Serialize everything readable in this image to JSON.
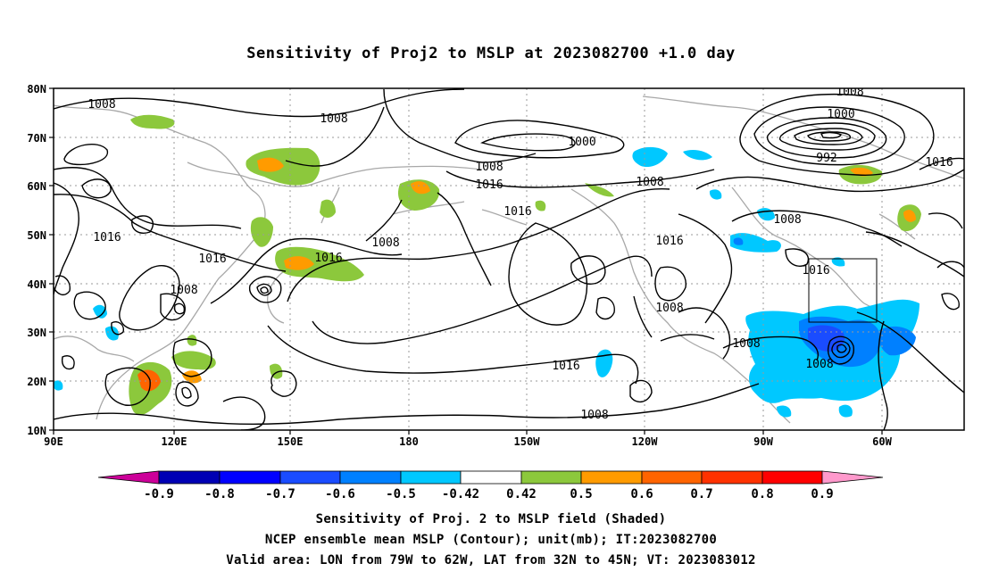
{
  "title": "Sensitivity of Proj2 to MSLP at 2023082700 +1.0 day",
  "lat_labels": [
    "80N",
    "70N",
    "60N",
    "50N",
    "40N",
    "30N",
    "20N",
    "10N"
  ],
  "lon_labels": [
    "90E",
    "120E",
    "150E",
    "180",
    "150W",
    "120W",
    "90W",
    "60W"
  ],
  "contour_labels": [
    "1008",
    "1008",
    "1016",
    "1016",
    "1008",
    "1016",
    "1008",
    "1016",
    "1000",
    "1008",
    "1016",
    "1016",
    "1008",
    "1016",
    "1008",
    "1008",
    "1008",
    "1000",
    "992",
    "1008",
    "1016",
    "1008",
    "1016",
    "1008",
    "1008"
  ],
  "colorbar": {
    "labels": [
      "-0.9",
      "-0.8",
      "-0.7",
      "-0.6",
      "-0.5",
      "-0.42",
      "0.42",
      "0.5",
      "0.6",
      "0.7",
      "0.8",
      "0.9"
    ],
    "colors": [
      "#cc0099",
      "#0000b4",
      "#0000ff",
      "#1a4cff",
      "#0080ff",
      "#00c8ff",
      "#ffffff",
      "#8cc83c",
      "#ff9b00",
      "#ff6400",
      "#ff3200",
      "#ff0000",
      "#ff99cc"
    ]
  },
  "captions": [
    "Sensitivity of Proj. 2 to MSLP field (Shaded)",
    "NCEP ensemble mean MSLP (Contour); unit(mb); IT:2023082700",
    "Valid area: LON from 79W to 62W, LAT from 32N to 45N; VT: 2023083012"
  ],
  "valid_area": {
    "lon_from": "79W",
    "lon_to": "62W",
    "lat_from": "32N",
    "lat_to": "45N"
  }
}
